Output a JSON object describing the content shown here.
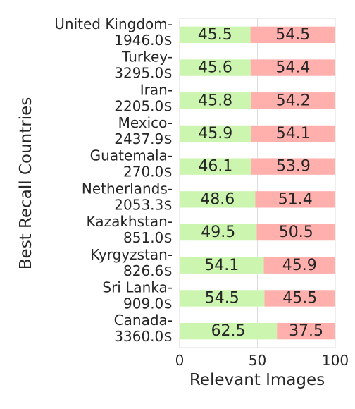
{
  "chart_data": {
    "type": "bar",
    "orientation": "horizontal",
    "stacked": true,
    "categories": [
      "United Kingdom-\n1946.0$",
      "Turkey-\n3295.0$",
      "Iran-\n2205.0$",
      "Mexico-\n2437.9$",
      "Guatemala-\n270.0$",
      "Netherlands-\n2053.3$",
      "Kazakhstan-\n851.0$",
      "Kyrgyzstan-\n826.6$",
      "Sri Lanka-\n909.0$",
      "Canada-\n3360.0$"
    ],
    "series": [
      {
        "color": "#ccf5b0",
        "values": [
          45.5,
          45.6,
          45.8,
          45.9,
          46.1,
          48.6,
          49.5,
          54.1,
          54.5,
          62.5
        ]
      },
      {
        "color": "#ffb0ad",
        "values": [
          54.5,
          54.4,
          54.2,
          54.1,
          53.9,
          51.4,
          50.5,
          45.9,
          45.5,
          37.5
        ]
      }
    ],
    "xlabel": "Relevant Images",
    "ylabel": "Best Recall Countries",
    "xlim": [
      0,
      100
    ],
    "xticks": [
      0,
      50,
      100
    ],
    "grid": true,
    "legend": "none",
    "data_labels": true
  }
}
